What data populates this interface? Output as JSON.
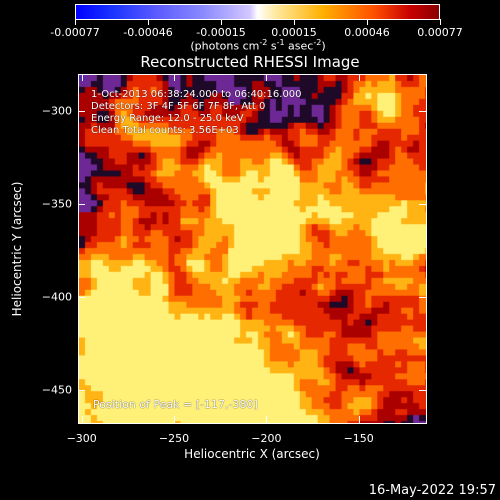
{
  "header": {
    "colorbar_ticks": [
      "-0.00077",
      "-0.00046",
      "-0.00015",
      "0.00015",
      "0.00046",
      "0.00077"
    ],
    "units_main": "(photons cm",
    "units_exp1": "-2",
    "units_mid": " s",
    "units_exp2": "-1",
    "units_end": " asec",
    "units_exp3": "-2",
    "units_close": ")",
    "title": "Reconstructed RHESSI Image"
  },
  "overlay": {
    "line1": "1-Oct-2013 06:38:24.000 to 06:40:16.000",
    "line2": "Detectors: 3F 4F 5F 6F 7F 8F, Att 0",
    "line3": "Energy Range: 12.0 - 25.0 keV",
    "line4": "Clean     Total counts: 3.56E+03",
    "peak": "Position of Peak = [-117,-380]"
  },
  "footer": {
    "timestamp": "16-May-2022 19:57"
  },
  "chart_data": {
    "type": "heatmap",
    "title": "Reconstructed RHESSI Image",
    "xlabel": "Heliocentric X (arcsec)",
    "ylabel": "Heliocentric Y (arcsec)",
    "xlim": [
      -302,
      -113
    ],
    "ylim": [
      -468,
      -280
    ],
    "xticks": [
      -300,
      -250,
      -200,
      -150
    ],
    "yticks": [
      -300,
      -350,
      -400,
      -450
    ],
    "colorbar": {
      "min": -0.00077,
      "max": 0.00077,
      "ticks": [
        -0.00077,
        -0.00046,
        -0.00015,
        0.00015,
        0.00046,
        0.00077
      ],
      "label": "(photons cm-2 s-1 asec-2)"
    },
    "peak": [
      -117,
      -380
    ],
    "colors": {
      "negative": "#3a2cd0",
      "neutral": "#5a2aa0",
      "positive_low": "#c80000",
      "positive_mid": "#ff6000",
      "positive_high": "#ffff80"
    }
  }
}
